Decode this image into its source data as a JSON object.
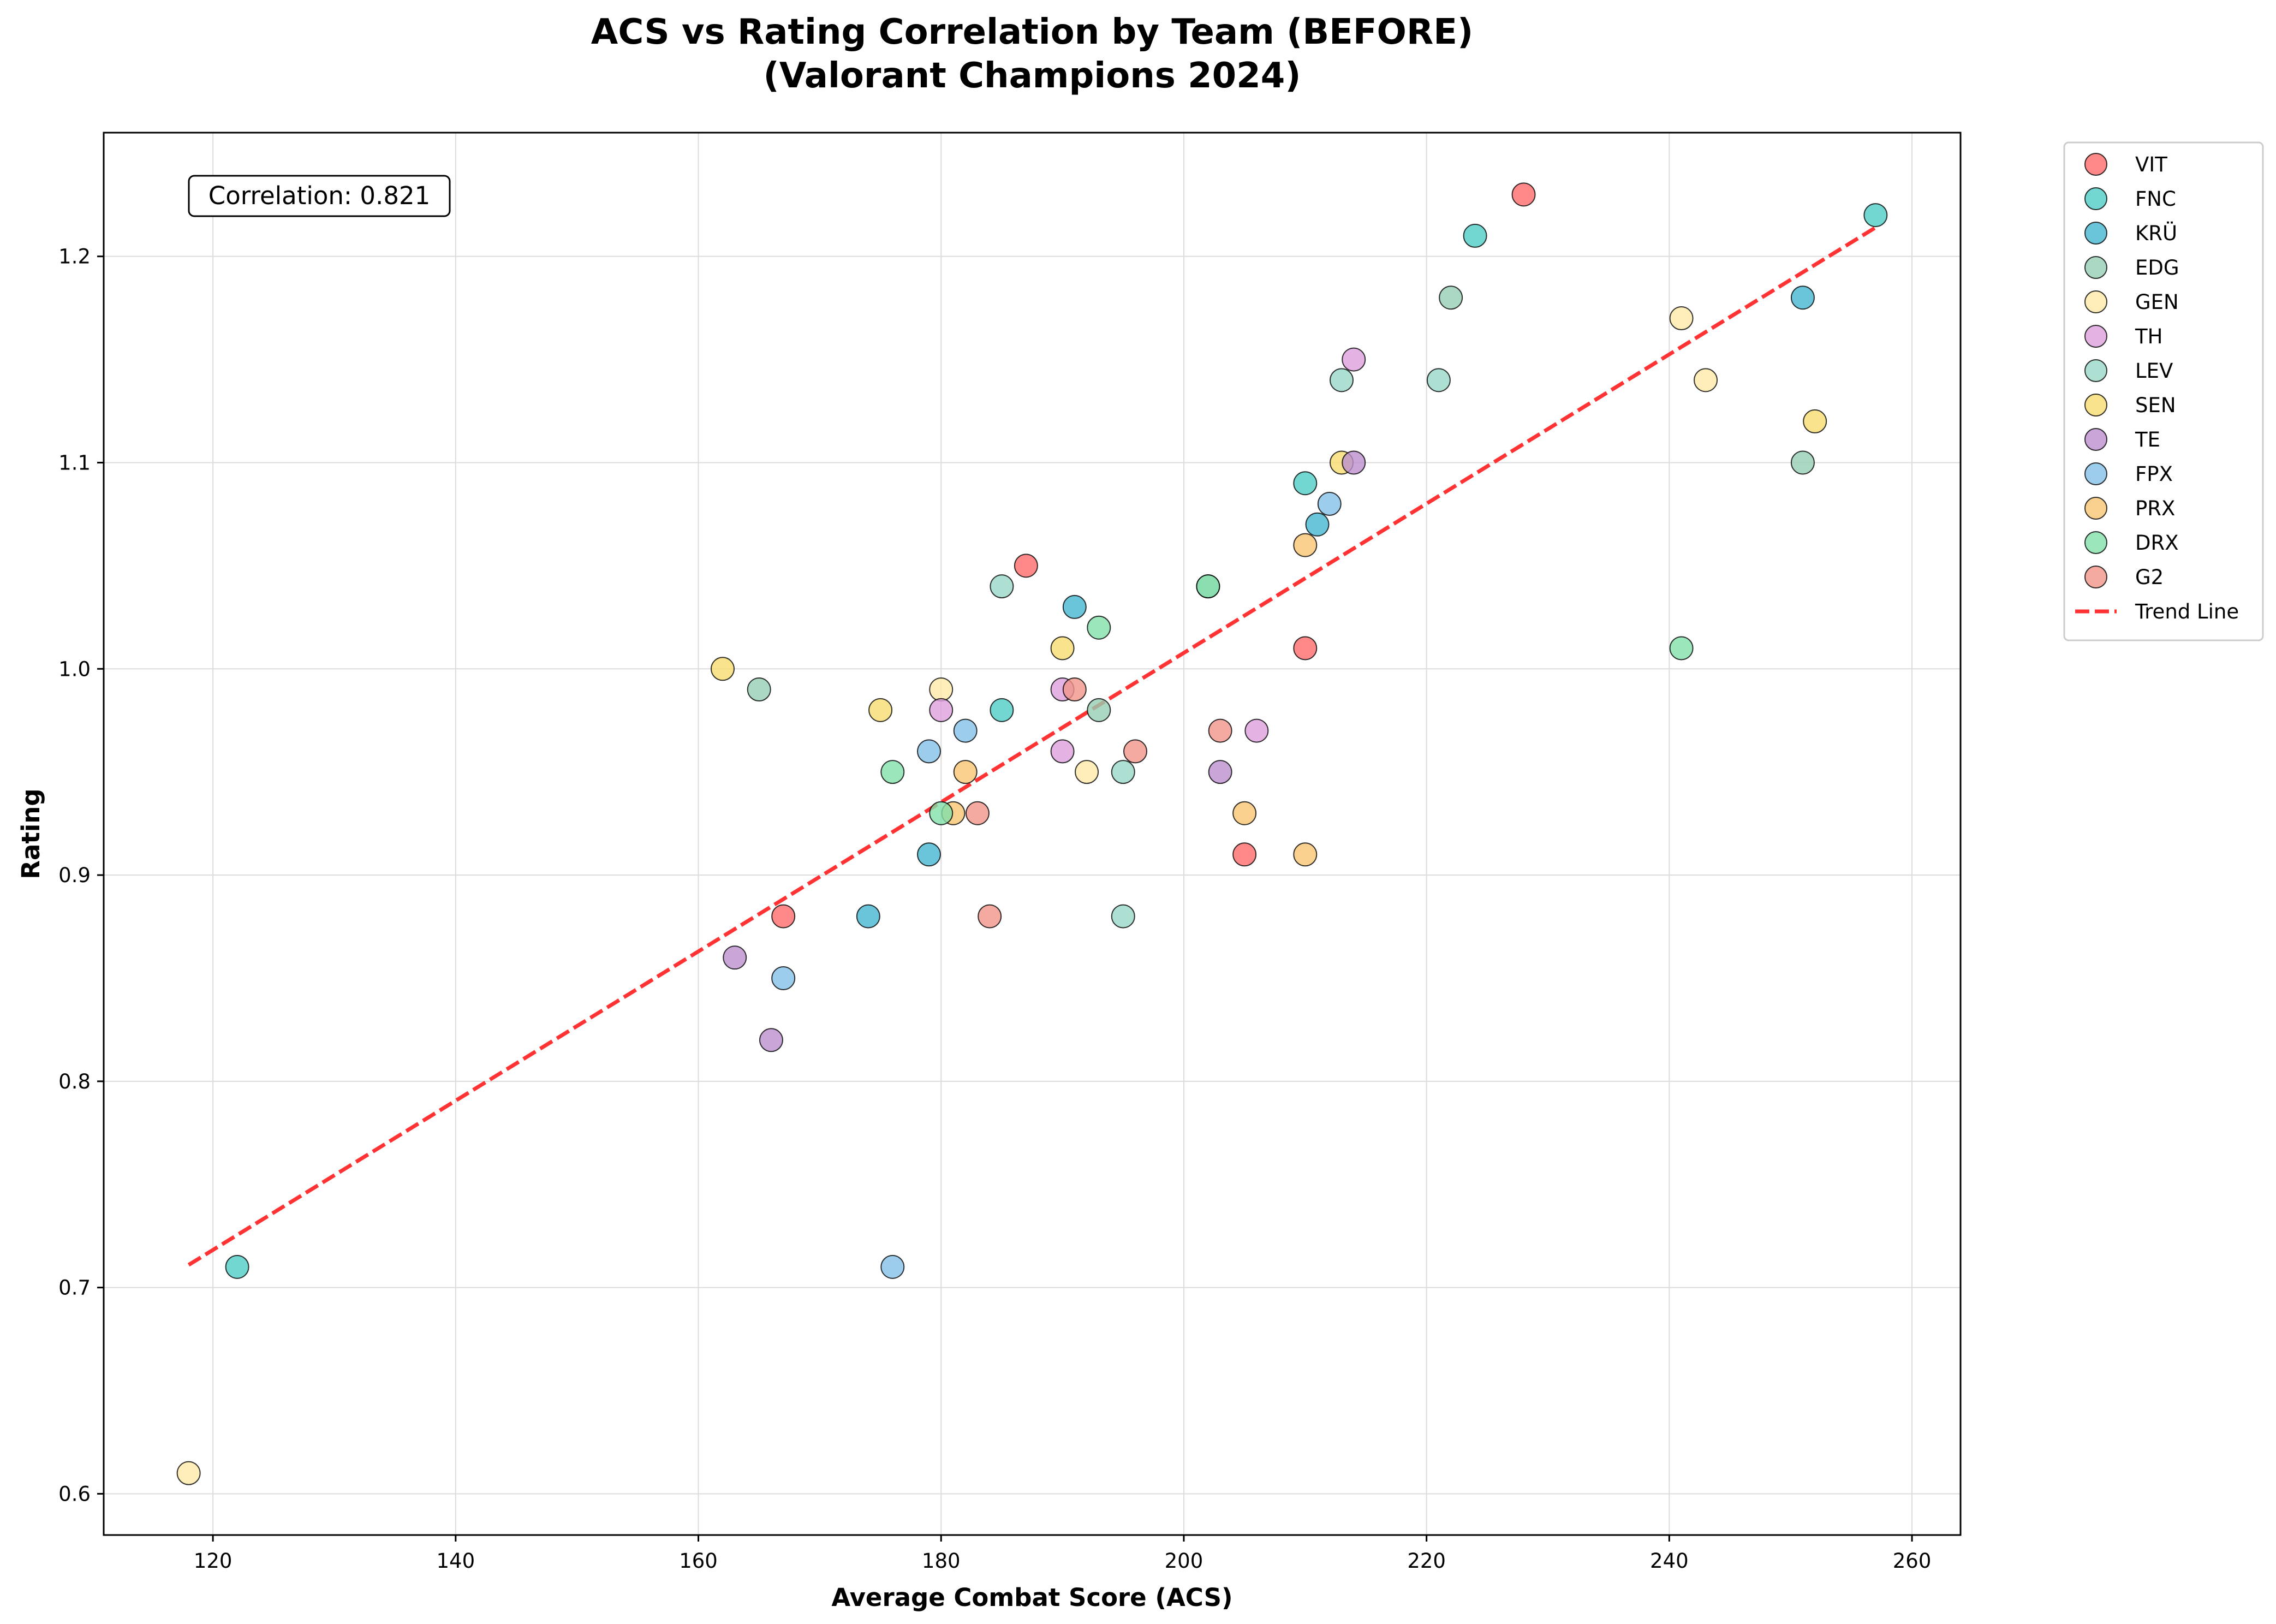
{
  "chart_data": {
    "type": "scatter",
    "title_lines": [
      "ACS vs Rating Correlation by Team (BEFORE)",
      "(Valorant Champions 2024)"
    ],
    "xlabel": "Average Combat Score (ACS)",
    "ylabel": "Rating",
    "xlim": [
      111,
      264
    ],
    "ylim": [
      0.58,
      1.26
    ],
    "xticks": [
      120,
      140,
      160,
      180,
      200,
      220,
      240,
      260
    ],
    "yticks": [
      0.6,
      0.7,
      0.8,
      0.9,
      1.0,
      1.1,
      1.2
    ],
    "ytick_labels": [
      "0.6",
      "0.7",
      "0.8",
      "0.9",
      "1.0",
      "1.1",
      "1.2"
    ],
    "grid": true,
    "legend_position": "outside-right-top",
    "annotation": "Correlation: 0.821",
    "series": [
      {
        "name": "VIT",
        "color": "#FF6B6B",
        "x": [
          228,
          187,
          210,
          167,
          205
        ],
        "y": [
          1.23,
          1.05,
          1.01,
          0.88,
          0.91
        ]
      },
      {
        "name": "FNC",
        "color": "#4ECDC4",
        "x": [
          257,
          224,
          210,
          185,
          122
        ],
        "y": [
          1.22,
          1.21,
          1.09,
          0.98,
          0.71
        ]
      },
      {
        "name": "KRÜ",
        "color": "#45B7D1",
        "x": [
          251,
          211,
          191,
          179,
          174
        ],
        "y": [
          1.18,
          1.07,
          1.03,
          0.91,
          0.88
        ]
      },
      {
        "name": "EDG",
        "color": "#96CEB4",
        "x": [
          222,
          251,
          202,
          193,
          165
        ],
        "y": [
          1.18,
          1.1,
          1.04,
          0.98,
          0.99
        ]
      },
      {
        "name": "GEN",
        "color": "#FFEAA7",
        "x": [
          241,
          243,
          180,
          192,
          118
        ],
        "y": [
          1.17,
          1.14,
          0.99,
          0.95,
          0.61
        ]
      },
      {
        "name": "TH",
        "color": "#DDA0DD",
        "x": [
          214,
          180,
          190,
          206,
          190
        ],
        "y": [
          1.15,
          0.98,
          0.99,
          0.97,
          0.96
        ]
      },
      {
        "name": "LEV",
        "color": "#98D8C8",
        "x": [
          213,
          221,
          185,
          195,
          195
        ],
        "y": [
          1.14,
          1.14,
          1.04,
          0.95,
          0.88
        ]
      },
      {
        "name": "SEN",
        "color": "#F7DC6F",
        "x": [
          252,
          213,
          190,
          162,
          175
        ],
        "y": [
          1.12,
          1.1,
          1.01,
          1.0,
          0.98
        ]
      },
      {
        "name": "TE",
        "color": "#BB8FCE",
        "x": [
          214,
          203,
          163,
          166
        ],
        "y": [
          1.1,
          0.95,
          0.86,
          0.82
        ]
      },
      {
        "name": "FPX",
        "color": "#85C1E9",
        "x": [
          212,
          179,
          182,
          167,
          176
        ],
        "y": [
          1.08,
          0.96,
          0.97,
          0.85,
          0.71
        ]
      },
      {
        "name": "PRX",
        "color": "#F8C471",
        "x": [
          210,
          182,
          181,
          205,
          210
        ],
        "y": [
          1.06,
          0.95,
          0.93,
          0.93,
          0.91
        ]
      },
      {
        "name": "DRX",
        "color": "#82E0AA",
        "x": [
          202,
          193,
          176,
          180,
          241
        ],
        "y": [
          1.04,
          1.02,
          0.95,
          0.93,
          1.01
        ]
      },
      {
        "name": "G2",
        "color": "#F1948A",
        "x": [
          191,
          203,
          196,
          183,
          184
        ],
        "y": [
          0.99,
          0.97,
          0.96,
          0.93,
          0.88
        ]
      }
    ],
    "trend_line": {
      "name": "Trend Line",
      "color": "#FF3333",
      "x": [
        118,
        257
      ],
      "y": [
        0.711,
        1.214
      ]
    }
  }
}
